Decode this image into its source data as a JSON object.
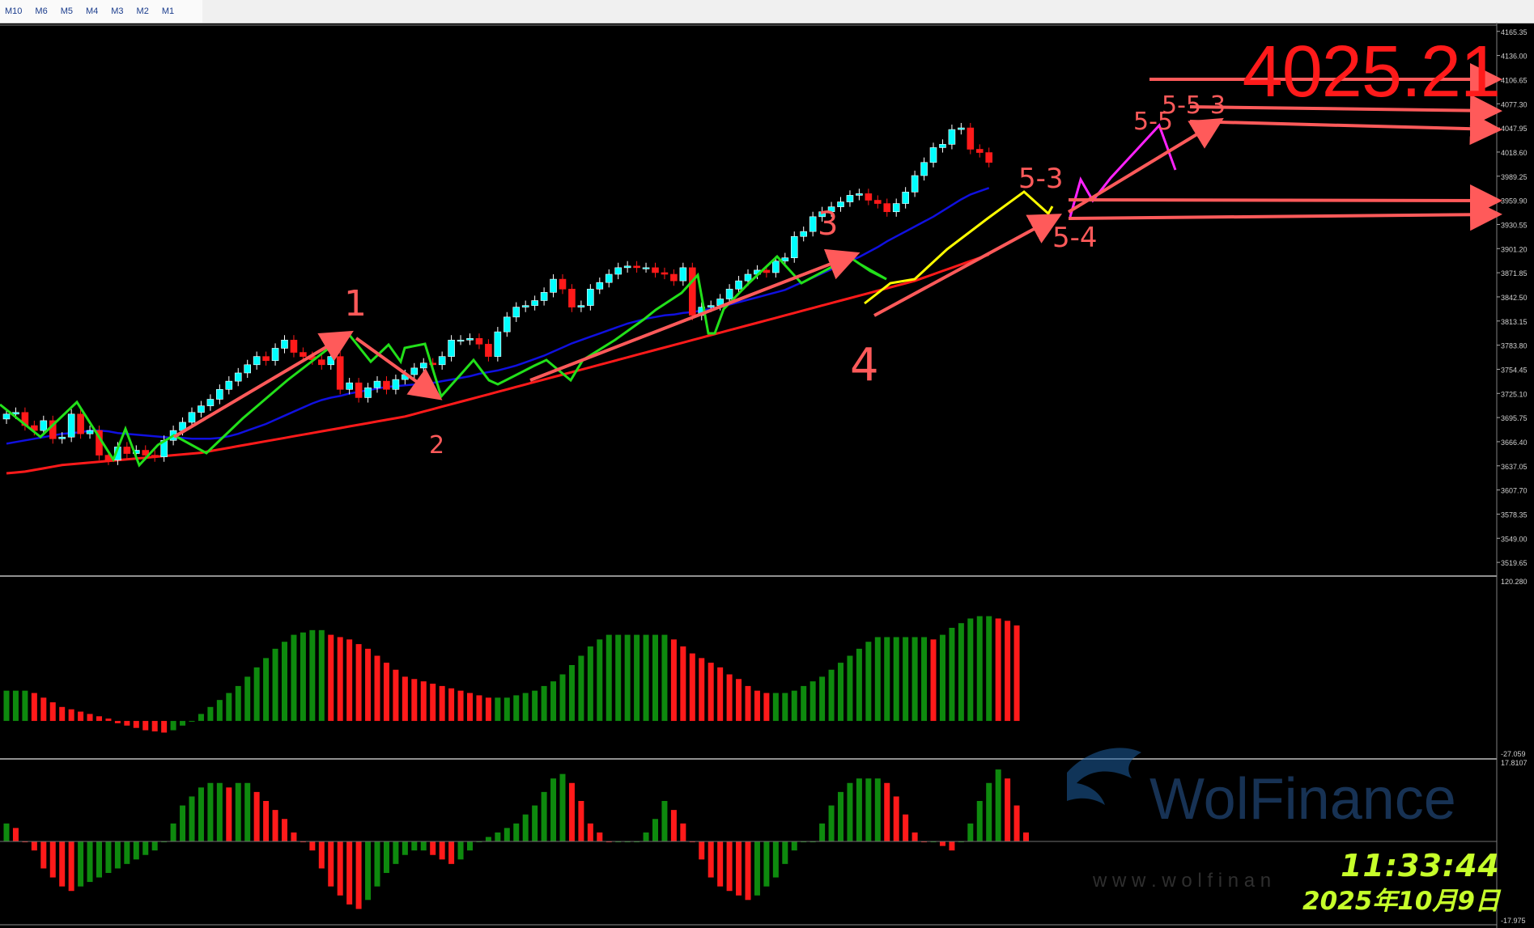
{
  "toolbar": {
    "timeframes": [
      "M10",
      "M6",
      "M5",
      "M4",
      "M3",
      "M2",
      "M1"
    ]
  },
  "overlay": {
    "price_label": "4025.21",
    "wave_labels": [
      "1",
      "2",
      "3",
      "4",
      "5-3",
      "5-4",
      "5-5",
      "5-5-3"
    ],
    "time": "11:33:44",
    "date": "2025年10月9日",
    "watermark": "WolFinance",
    "watermark_url": "w w w . w o l f i n a n"
  },
  "colors": {
    "background": "#000000",
    "bull_candle": "#ffffff",
    "bull_candle_fill": "#00ffff",
    "bear_candle": "#ff1a1a",
    "ma_fast": "#1010e0",
    "ma_slow": "#ff1a1a",
    "zigzag": "#22e01a",
    "arrows": "#ff5a5a",
    "hist_up": "#0e8a0e",
    "hist_down": "#ff1a1a"
  },
  "chart_data": [
    {
      "type": "candlestick",
      "panel": "price",
      "ylim": [
        3505,
        4173
      ],
      "y_ticks": [
        "4165.35",
        "4136.00",
        "4106.65",
        "4077.30",
        "4047.95",
        "4018.60",
        "3989.25",
        "3959.90",
        "3930.55",
        "3901.20",
        "3871.85",
        "3842.50",
        "3813.15",
        "3783.80",
        "3754.45",
        "3725.10",
        "3695.75",
        "3666.40",
        "3637.05",
        "3607.70",
        "3578.35",
        "3549.00",
        "3519.65"
      ],
      "close": [
        3700,
        3702,
        3686,
        3680,
        3692,
        3670,
        3672,
        3700,
        3676,
        3680,
        3650,
        3644,
        3660,
        3652,
        3656,
        3650,
        3648,
        3668,
        3680,
        3690,
        3702,
        3710,
        3718,
        3730,
        3740,
        3750,
        3760,
        3770,
        3765,
        3780,
        3790,
        3775,
        3770,
        3766,
        3760,
        3770,
        3730,
        3738,
        3720,
        3732,
        3740,
        3730,
        3742,
        3748,
        3756,
        3762,
        3760,
        3770,
        3790,
        3790,
        3792,
        3785,
        3770,
        3800,
        3818,
        3830,
        3832,
        3838,
        3848,
        3864,
        3852,
        3830,
        3832,
        3852,
        3860,
        3870,
        3878,
        3880,
        3878,
        3878,
        3872,
        3870,
        3862,
        3878,
        3820,
        3830,
        3832,
        3840,
        3852,
        3862,
        3870,
        3875,
        3872,
        3886,
        3890,
        3916,
        3922,
        3940,
        3946,
        3952,
        3958,
        3966,
        3968,
        3960,
        3956,
        3946,
        3956,
        3970,
        3990,
        4006,
        4024,
        4028,
        4046,
        4048,
        4022,
        4018,
        4006
      ],
      "ma_fast": [
        3664,
        3666,
        3668,
        3670,
        3672,
        3674,
        3676,
        3677,
        3678,
        3680,
        3680,
        3679,
        3677,
        3676,
        3675,
        3674,
        3673,
        3672,
        3671,
        3671,
        3670,
        3670,
        3670,
        3671,
        3673,
        3676,
        3680,
        3684,
        3688,
        3693,
        3698,
        3703,
        3708,
        3713,
        3717,
        3720,
        3722,
        3725,
        3727,
        3729,
        3731,
        3733,
        3734,
        3735,
        3736,
        3737,
        3738,
        3740,
        3742,
        3744,
        3746,
        3749,
        3751,
        3753,
        3756,
        3759,
        3763,
        3767,
        3771,
        3776,
        3781,
        3786,
        3790,
        3794,
        3798,
        3802,
        3806,
        3810,
        3813,
        3816,
        3818,
        3820,
        3821,
        3823,
        3824,
        3826,
        3828,
        3830,
        3833,
        3836,
        3839,
        3842,
        3845,
        3848,
        3851,
        3856,
        3861,
        3866,
        3871,
        3876,
        3881,
        3886,
        3891,
        3897,
        3903,
        3910,
        3916,
        3922,
        3928,
        3934,
        3940,
        3947,
        3954,
        3961,
        3967,
        3971,
        3975
      ],
      "ma_slow": [
        3628,
        3629,
        3630,
        3632,
        3634,
        3636,
        3638,
        3639,
        3640,
        3641,
        3642,
        3643,
        3644,
        3645,
        3646,
        3647,
        3648,
        3649,
        3650,
        3651,
        3652,
        3653,
        3655,
        3657,
        3659,
        3661,
        3663,
        3665,
        3667,
        3669,
        3671,
        3673,
        3675,
        3677,
        3679,
        3681,
        3683,
        3685,
        3687,
        3689,
        3691,
        3693,
        3695,
        3697,
        3700,
        3703,
        3706,
        3709,
        3712,
        3715,
        3718,
        3721,
        3724,
        3727,
        3730,
        3733,
        3736,
        3739,
        3742,
        3745,
        3748,
        3751,
        3754,
        3757,
        3760,
        3763,
        3766,
        3769,
        3772,
        3775,
        3778,
        3781,
        3784,
        3787,
        3790,
        3793,
        3796,
        3799,
        3802,
        3805,
        3808,
        3811,
        3814,
        3817,
        3820,
        3823,
        3826,
        3829,
        3832,
        3835,
        3838,
        3841,
        3844,
        3847,
        3850,
        3853,
        3856,
        3859,
        3862,
        3866,
        3870,
        3874,
        3878,
        3882,
        3886,
        3890,
        3894
      ]
    },
    {
      "type": "bar",
      "panel": "oscillator_1",
      "ylim": [
        -27.059,
        120.28
      ],
      "y_ticks": [
        "120.280",
        "-27.059"
      ],
      "values": [
        26,
        26,
        26,
        24,
        20,
        16,
        12,
        10,
        8,
        6,
        4,
        2,
        -2,
        -4,
        -6,
        -8,
        -9,
        -10,
        -8,
        -4,
        0,
        6,
        12,
        18,
        24,
        30,
        38,
        46,
        54,
        62,
        68,
        74,
        76,
        78,
        78,
        74,
        72,
        70,
        66,
        62,
        56,
        50,
        44,
        38,
        36,
        34,
        32,
        30,
        28,
        26,
        24,
        22,
        20,
        20,
        20,
        22,
        24,
        26,
        30,
        34,
        40,
        48,
        56,
        64,
        70,
        74,
        74,
        74,
        74,
        74,
        74,
        74,
        70,
        64,
        58,
        54,
        50,
        46,
        40,
        36,
        30,
        26,
        24,
        24,
        24,
        26,
        30,
        34,
        38,
        44,
        50,
        56,
        62,
        68,
        72,
        72,
        72,
        72,
        72,
        72,
        70,
        74,
        80,
        84,
        88,
        90,
        90,
        88,
        86,
        82
      ]
    },
    {
      "type": "bar",
      "panel": "oscillator_2",
      "ylim": [
        -17.975,
        17.8107
      ],
      "y_ticks": [
        "17.8107",
        "-17.975"
      ],
      "values": [
        4,
        3,
        0,
        -2,
        -6,
        -8,
        -10,
        -11,
        -10,
        -9,
        -8,
        -7,
        -6,
        -5,
        -4,
        -3,
        -2,
        0,
        4,
        8,
        10,
        12,
        13,
        13,
        12,
        13,
        13,
        11,
        9,
        7,
        5,
        2,
        0,
        -2,
        -6,
        -10,
        -12,
        -14,
        -15,
        -13,
        -10,
        -7,
        -5,
        -3,
        -2,
        -2,
        -3,
        -4,
        -5,
        -4,
        -2,
        0,
        1,
        2,
        3,
        4,
        6,
        8,
        11,
        14,
        15,
        13,
        9,
        4,
        2,
        0,
        0,
        0,
        0,
        2,
        5,
        9,
        7,
        4,
        0,
        -4,
        -8,
        -10,
        -11,
        -12,
        -13,
        -12,
        -10,
        -8,
        -5,
        -2,
        0,
        0,
        4,
        8,
        11,
        13,
        14,
        14,
        14,
        13,
        10,
        6,
        2,
        0,
        0,
        -1,
        -2,
        0,
        4,
        9,
        13,
        16,
        14,
        8,
        2
      ]
    }
  ]
}
